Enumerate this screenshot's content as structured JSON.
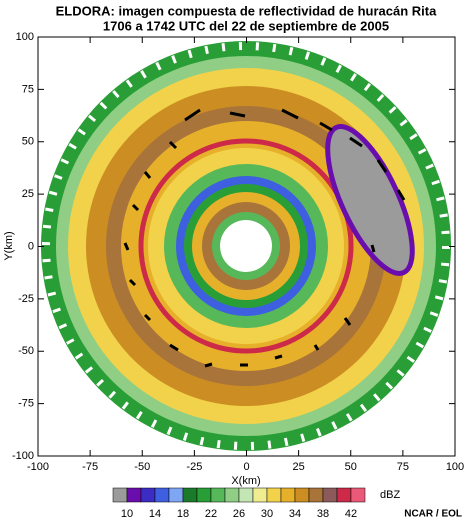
{
  "chart_data": {
    "type": "contour",
    "title": "ELDORA: imagen compuesta de reflectividad de huracán Rita",
    "subtitle": "1706 a 1742 UTC del 22 de septiembre de 2005",
    "xlabel": "X(km)",
    "ylabel": "Y(km)",
    "xlim": [
      -100,
      100
    ],
    "ylim": [
      -100,
      100
    ],
    "xticks": [
      -100,
      -75,
      -50,
      -25,
      0,
      25,
      50,
      75,
      100
    ],
    "yticks": [
      -100,
      -75,
      -50,
      -25,
      0,
      25,
      50,
      75,
      100
    ],
    "colorbar": {
      "label": "dBZ",
      "bounds": [
        8,
        10,
        12,
        14,
        16,
        18,
        20,
        22,
        24,
        26,
        28,
        30,
        32,
        34,
        36,
        38,
        40,
        42,
        44
      ],
      "ticks": [
        10,
        14,
        18,
        22,
        26,
        30,
        34,
        38,
        42
      ],
      "colors": [
        "#9b9b9b",
        "#6a0dad",
        "#3b2cc4",
        "#3d5fe0",
        "#7fa6f2",
        "#1a7a2a",
        "#2a9e36",
        "#57b85a",
        "#8fce84",
        "#c4e6b4",
        "#f0ec90",
        "#f2d24a",
        "#e6b02a",
        "#cc8e22",
        "#a8743a",
        "#8c5a5a",
        "#cc2a48",
        "#ea5a78"
      ]
    },
    "credit": "NCAR / EOL"
  }
}
